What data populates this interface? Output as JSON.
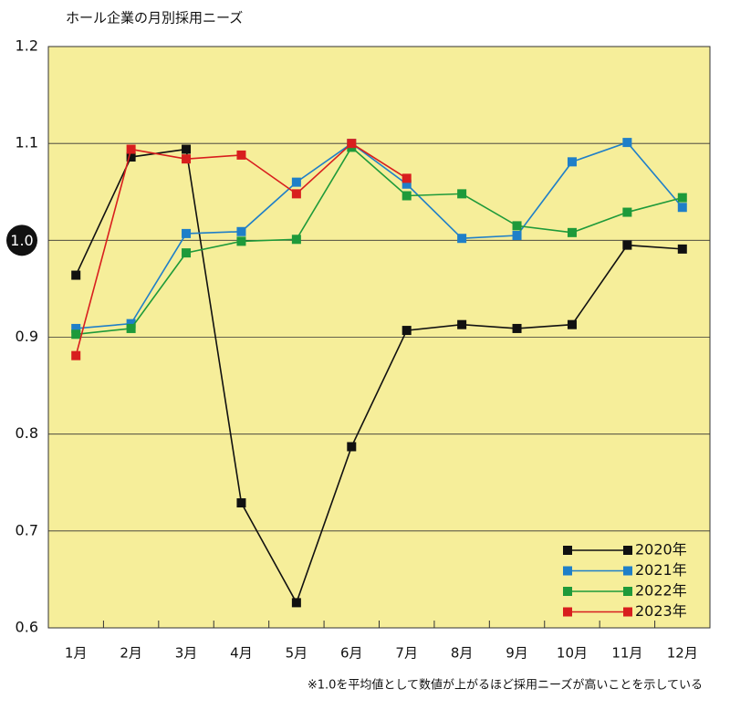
{
  "chart_data": {
    "type": "line",
    "title": "ホール企業の月別採用ニーズ",
    "note": "※1.0を平均値として数値が上がるほど採用ニーズが高いことを示している",
    "categories": [
      "1月",
      "2月",
      "3月",
      "4月",
      "5月",
      "6月",
      "7月",
      "8月",
      "9月",
      "10月",
      "11月",
      "12月"
    ],
    "series": [
      {
        "name": "2020年",
        "color": "#111111",
        "values": [
          0.964,
          1.086,
          1.094,
          0.729,
          0.626,
          0.787,
          0.907,
          0.913,
          0.909,
          0.913,
          0.995,
          0.991
        ]
      },
      {
        "name": "2021年",
        "color": "#1f7fc8",
        "values": [
          0.909,
          0.914,
          1.007,
          1.009,
          1.06,
          1.1,
          1.058,
          1.002,
          1.005,
          1.081,
          1.101,
          1.034
        ]
      },
      {
        "name": "2022年",
        "color": "#1e9a3a",
        "values": [
          0.903,
          0.909,
          0.987,
          0.999,
          1.001,
          1.096,
          1.046,
          1.048,
          1.015,
          1.008,
          1.029,
          1.044
        ]
      },
      {
        "name": "2023年",
        "color": "#d81e1e",
        "values": [
          0.881,
          1.094,
          1.084,
          1.088,
          1.048,
          1.1,
          1.064,
          null,
          null,
          null,
          null,
          null
        ]
      }
    ],
    "ylim": [
      0.6,
      1.2
    ],
    "yticks": [
      0.6,
      0.7,
      0.8,
      0.9,
      {
        "value": 1,
        "label": "1.0",
        "highlight": true
      },
      1.1,
      1.2
    ],
    "grid": true,
    "legend": "lower-right",
    "background": "#f6ee9a"
  }
}
